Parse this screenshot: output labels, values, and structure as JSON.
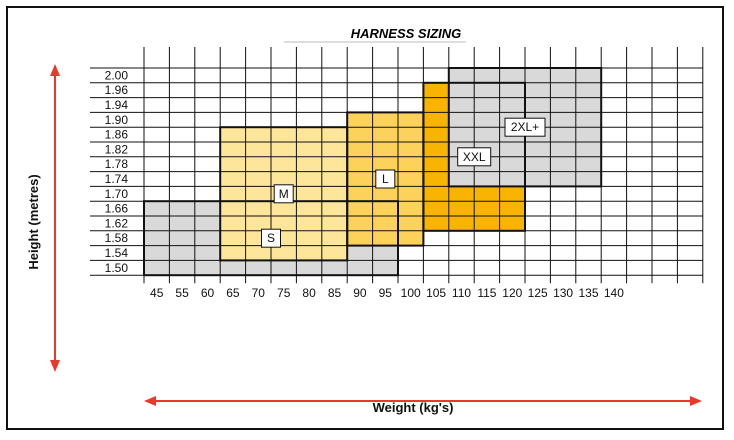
{
  "chart_data": {
    "type": "heatmap",
    "title": "HARNESS SIZING",
    "xlabel": "Weight (kg's)",
    "ylabel": "Height (metres)",
    "x_ticks": [
      "45",
      "55",
      "60",
      "65",
      "70",
      "75",
      "80",
      "85",
      "90",
      "95",
      "100",
      "105",
      "110",
      "115",
      "120",
      "125",
      "130",
      "135",
      "140"
    ],
    "y_ticks": [
      "2.00",
      "1.96",
      "1.94",
      "1.90",
      "1.86",
      "1.82",
      "1.78",
      "1.74",
      "1.70",
      "1.66",
      "1.62",
      "1.58",
      "1.54",
      "1.50"
    ],
    "sizes": [
      {
        "name": "S",
        "color": "#d9d9d9",
        "x_from": "45",
        "x_to": "100",
        "y_from": "1.50",
        "y_to": "1.66"
      },
      {
        "name": "M",
        "color": "#fde59a",
        "x_from": "65",
        "x_to": "90",
        "y_from": "1.54",
        "y_to": "1.86"
      },
      {
        "name": "L",
        "color": "#fcd25a",
        "x_from": "90",
        "x_to": "105",
        "y_from": "1.58",
        "y_to": "1.90"
      },
      {
        "name": "XXL",
        "color": "#f8b400",
        "x_from": "105",
        "x_to": "125",
        "y_from": "1.62",
        "y_to": "1.96"
      },
      {
        "name": "2XL+",
        "color": "#d9d9d9",
        "x_from": "110",
        "x_to": "140",
        "y_from": "1.74",
        "y_to": "2.00"
      }
    ],
    "colors": {
      "grid": "#111111",
      "arrow": "#e8392a",
      "border": "#111111"
    }
  }
}
